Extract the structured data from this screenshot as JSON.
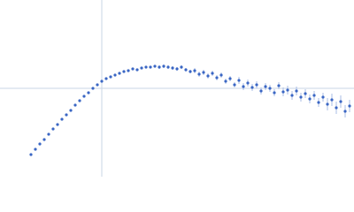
{
  "chart_data": {
    "type": "scatter",
    "x": [
      -0.8,
      -0.75,
      -0.7,
      -0.65,
      -0.6,
      -0.55,
      -0.5,
      -0.45,
      -0.4,
      -0.35,
      -0.3,
      -0.25,
      -0.2,
      -0.15,
      -0.1,
      -0.05,
      0,
      0.05,
      0.1,
      0.15,
      0.2,
      0.25,
      0.3,
      0.35,
      0.4,
      0.45,
      0.5,
      0.55,
      0.6,
      0.65,
      0.7,
      0.75,
      0.8,
      0.85,
      0.9,
      0.95,
      1.0,
      1.05,
      1.1,
      1.15,
      1.2,
      1.25,
      1.3,
      1.35,
      1.4,
      1.45,
      1.5,
      1.55,
      1.6,
      1.65,
      1.7,
      1.75,
      1.8,
      1.85,
      1.9,
      1.95,
      2.0,
      2.05,
      2.1,
      2.15,
      2.2,
      2.25,
      2.3,
      2.35,
      2.4,
      2.45,
      2.5,
      2.55,
      2.6,
      2.65,
      2.7,
      2.75,
      2.8
    ],
    "values": [
      -0.75,
      -0.69,
      -0.63,
      -0.58,
      -0.52,
      -0.46,
      -0.41,
      -0.35,
      -0.3,
      -0.25,
      -0.19,
      -0.14,
      -0.09,
      -0.05,
      0.0,
      0.04,
      0.08,
      0.11,
      0.13,
      0.15,
      0.17,
      0.19,
      0.2,
      0.22,
      0.21,
      0.23,
      0.24,
      0.24,
      0.25,
      0.24,
      0.25,
      0.24,
      0.23,
      0.22,
      0.24,
      0.21,
      0.19,
      0.2,
      0.16,
      0.18,
      0.14,
      0.17,
      0.12,
      0.15,
      0.08,
      0.11,
      0.04,
      0.09,
      0.02,
      0.06,
      0.01,
      0.04,
      -0.03,
      0.02,
      0.0,
      -0.05,
      0.03,
      -0.04,
      -0.02,
      -0.08,
      -0.03,
      -0.1,
      -0.06,
      -0.12,
      -0.08,
      -0.16,
      -0.1,
      -0.18,
      -0.13,
      -0.22,
      -0.15,
      -0.26,
      -0.2
    ],
    "errors": [
      0.01,
      0.01,
      0.01,
      0.01,
      0.01,
      0.01,
      0.01,
      0.01,
      0.01,
      0.01,
      0.01,
      0.01,
      0.01,
      0.01,
      0.01,
      0.01,
      0.01,
      0.015,
      0.015,
      0.015,
      0.015,
      0.015,
      0.015,
      0.015,
      0.015,
      0.015,
      0.015,
      0.015,
      0.015,
      0.02,
      0.02,
      0.02,
      0.02,
      0.02,
      0.02,
      0.02,
      0.02,
      0.03,
      0.03,
      0.03,
      0.03,
      0.03,
      0.03,
      0.03,
      0.03,
      0.03,
      0.03,
      0.04,
      0.04,
      0.04,
      0.04,
      0.04,
      0.04,
      0.04,
      0.04,
      0.04,
      0.04,
      0.05,
      0.05,
      0.05,
      0.05,
      0.05,
      0.05,
      0.05,
      0.05,
      0.05,
      0.05,
      0.07,
      0.07,
      0.07,
      0.07,
      0.07,
      0.07
    ],
    "color": "#3a66c4",
    "error_color": "#a9bde6",
    "xlim": [
      -1.15,
      2.85
    ],
    "ylim": [
      -1,
      1
    ],
    "xline": 0,
    "yline": 0
  }
}
